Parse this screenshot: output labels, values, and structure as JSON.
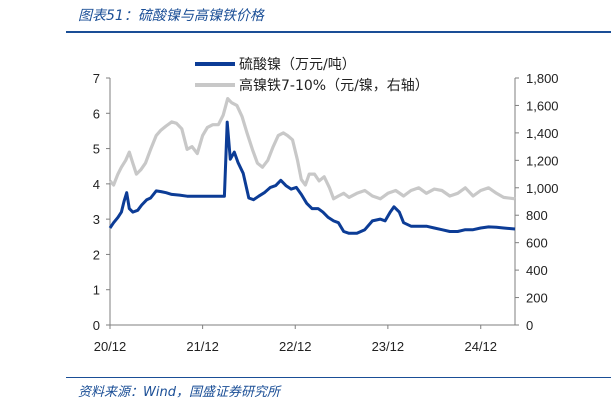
{
  "figure": {
    "title": "图表51：硫酸镍与高镍铁价格",
    "source": "资料来源：Wind，国盛证券研究所"
  },
  "colors": {
    "accent": "#1a4e96",
    "series1": "#0c3c96",
    "series2": "#c8c8c8",
    "axis": "#7f7f7f"
  },
  "chart_data": {
    "type": "line",
    "title": "",
    "xlabel": "",
    "ylabel": "",
    "x_tick_labels": [
      "20/12",
      "21/12",
      "22/12",
      "23/12",
      "24/12"
    ],
    "y_left": {
      "ylim": [
        0,
        7
      ],
      "ticks": [
        "0",
        "1",
        "2",
        "3",
        "4",
        "5",
        "6",
        "7"
      ]
    },
    "y_right": {
      "ylim": [
        0,
        1800
      ],
      "ticks": [
        "0",
        "200",
        "400",
        "600",
        "800",
        "1,000",
        "1,200",
        "1,400",
        "1,600",
        "1,800"
      ]
    },
    "grid": false,
    "legend_position": "top-center",
    "series": [
      {
        "name": "硫酸镍（万元/吨）",
        "axis": "left",
        "points": [
          [
            "2020-12-01",
            2.75
          ],
          [
            "2020-12-15",
            2.9
          ],
          [
            "2021-01-01",
            3.05
          ],
          [
            "2021-01-15",
            3.2
          ],
          [
            "2021-01-25",
            3.5
          ],
          [
            "2021-02-05",
            3.75
          ],
          [
            "2021-02-15",
            3.3
          ],
          [
            "2021-03-01",
            3.2
          ],
          [
            "2021-03-20",
            3.25
          ],
          [
            "2021-04-05",
            3.4
          ],
          [
            "2021-04-25",
            3.55
          ],
          [
            "2021-05-10",
            3.6
          ],
          [
            "2021-06-01",
            3.8
          ],
          [
            "2021-06-20",
            3.78
          ],
          [
            "2021-07-10",
            3.75
          ],
          [
            "2021-08-01",
            3.7
          ],
          [
            "2021-09-01",
            3.68
          ],
          [
            "2021-10-01",
            3.65
          ],
          [
            "2021-11-01",
            3.65
          ],
          [
            "2021-12-15",
            3.65
          ],
          [
            "2022-01-15",
            3.65
          ],
          [
            "2022-02-25",
            3.65
          ],
          [
            "2022-03-08",
            5.75
          ],
          [
            "2022-03-20",
            4.7
          ],
          [
            "2022-04-05",
            4.9
          ],
          [
            "2022-04-20",
            4.6
          ],
          [
            "2022-05-10",
            4.3
          ],
          [
            "2022-06-01",
            3.6
          ],
          [
            "2022-06-20",
            3.55
          ],
          [
            "2022-07-10",
            3.65
          ],
          [
            "2022-08-01",
            3.75
          ],
          [
            "2022-08-25",
            3.9
          ],
          [
            "2022-09-15",
            3.95
          ],
          [
            "2022-10-05",
            4.1
          ],
          [
            "2022-10-25",
            3.95
          ],
          [
            "2022-11-15",
            3.85
          ],
          [
            "2022-12-05",
            3.9
          ],
          [
            "2022-12-25",
            3.7
          ],
          [
            "2023-01-15",
            3.45
          ],
          [
            "2023-02-05",
            3.3
          ],
          [
            "2023-03-01",
            3.3
          ],
          [
            "2023-03-20",
            3.2
          ],
          [
            "2023-04-10",
            3.05
          ],
          [
            "2023-05-01",
            2.95
          ],
          [
            "2023-05-20",
            2.9
          ],
          [
            "2023-06-10",
            2.65
          ],
          [
            "2023-07-01",
            2.6
          ],
          [
            "2023-08-01",
            2.6
          ],
          [
            "2023-09-01",
            2.7
          ],
          [
            "2023-10-01",
            2.95
          ],
          [
            "2023-11-01",
            3.0
          ],
          [
            "2023-11-20",
            2.95
          ],
          [
            "2023-12-10",
            3.2
          ],
          [
            "2023-12-25",
            3.35
          ],
          [
            "2024-01-15",
            3.2
          ],
          [
            "2024-02-01",
            2.9
          ],
          [
            "2024-03-01",
            2.8
          ],
          [
            "2024-04-01",
            2.8
          ],
          [
            "2024-05-01",
            2.8
          ],
          [
            "2024-06-01",
            2.75
          ],
          [
            "2024-07-01",
            2.7
          ],
          [
            "2024-08-01",
            2.65
          ],
          [
            "2024-09-01",
            2.65
          ],
          [
            "2024-10-01",
            2.7
          ],
          [
            "2024-11-01",
            2.7
          ],
          [
            "2024-12-01",
            2.75
          ],
          [
            "2025-01-01",
            2.78
          ],
          [
            "2025-02-01",
            2.77
          ],
          [
            "2025-03-01",
            2.75
          ],
          [
            "2025-04-15",
            2.72
          ]
        ]
      },
      {
        "name": "高镍铁7-10%（元/镍，右轴）",
        "axis": "right",
        "points": [
          [
            "2020-12-01",
            1050
          ],
          [
            "2020-12-15",
            1020
          ],
          [
            "2021-01-01",
            1100
          ],
          [
            "2021-01-15",
            1150
          ],
          [
            "2021-02-01",
            1200
          ],
          [
            "2021-02-15",
            1260
          ],
          [
            "2021-03-01",
            1180
          ],
          [
            "2021-03-15",
            1100
          ],
          [
            "2021-04-01",
            1130
          ],
          [
            "2021-04-20",
            1180
          ],
          [
            "2021-05-10",
            1280
          ],
          [
            "2021-06-01",
            1380
          ],
          [
            "2021-06-20",
            1420
          ],
          [
            "2021-07-10",
            1450
          ],
          [
            "2021-08-01",
            1480
          ],
          [
            "2021-08-20",
            1470
          ],
          [
            "2021-09-10",
            1430
          ],
          [
            "2021-10-01",
            1280
          ],
          [
            "2021-10-20",
            1300
          ],
          [
            "2021-11-10",
            1250
          ],
          [
            "2021-12-01",
            1380
          ],
          [
            "2021-12-20",
            1440
          ],
          [
            "2022-01-10",
            1460
          ],
          [
            "2022-02-01",
            1460
          ],
          [
            "2022-02-20",
            1530
          ],
          [
            "2022-03-10",
            1650
          ],
          [
            "2022-03-25",
            1620
          ],
          [
            "2022-04-15",
            1600
          ],
          [
            "2022-05-05",
            1520
          ],
          [
            "2022-05-25",
            1400
          ],
          [
            "2022-06-15",
            1280
          ],
          [
            "2022-07-05",
            1180
          ],
          [
            "2022-07-25",
            1150
          ],
          [
            "2022-08-15",
            1200
          ],
          [
            "2022-09-05",
            1300
          ],
          [
            "2022-09-25",
            1380
          ],
          [
            "2022-10-15",
            1400
          ],
          [
            "2022-11-01",
            1380
          ],
          [
            "2022-11-20",
            1350
          ],
          [
            "2022-12-10",
            1200
          ],
          [
            "2022-12-25",
            1060
          ],
          [
            "2023-01-10",
            1020
          ],
          [
            "2023-01-25",
            1100
          ],
          [
            "2023-02-15",
            1100
          ],
          [
            "2023-03-05",
            1050
          ],
          [
            "2023-03-25",
            1080
          ],
          [
            "2023-04-15",
            1000
          ],
          [
            "2023-05-01",
            920
          ],
          [
            "2023-05-20",
            940
          ],
          [
            "2023-06-10",
            960
          ],
          [
            "2023-07-01",
            930
          ],
          [
            "2023-08-01",
            960
          ],
          [
            "2023-09-01",
            980
          ],
          [
            "2023-10-01",
            940
          ],
          [
            "2023-11-01",
            920
          ],
          [
            "2023-12-01",
            960
          ],
          [
            "2024-01-01",
            980
          ],
          [
            "2024-02-01",
            940
          ],
          [
            "2024-03-01",
            980
          ],
          [
            "2024-04-01",
            1000
          ],
          [
            "2024-05-01",
            960
          ],
          [
            "2024-06-01",
            990
          ],
          [
            "2024-07-01",
            980
          ],
          [
            "2024-08-01",
            940
          ],
          [
            "2024-09-01",
            960
          ],
          [
            "2024-10-01",
            1000
          ],
          [
            "2024-11-01",
            940
          ],
          [
            "2024-12-01",
            980
          ],
          [
            "2025-01-01",
            1000
          ],
          [
            "2025-02-01",
            960
          ],
          [
            "2025-03-01",
            930
          ],
          [
            "2025-04-15",
            920
          ]
        ]
      }
    ]
  }
}
